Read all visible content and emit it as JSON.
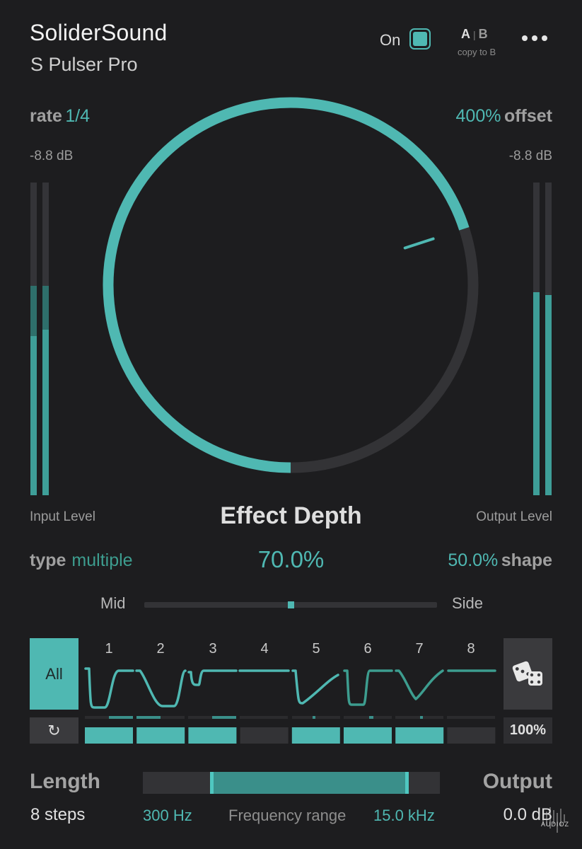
{
  "header": {
    "brand": "SoliderSound",
    "product": "S Pulser Pro",
    "on_label": "On",
    "ab_a": "A",
    "ab_sep": "|",
    "ab_b": "B",
    "copy_label": "copy to B"
  },
  "knob_row": {
    "rate_label": "rate",
    "rate_value": "1/4",
    "offset_value": "400%",
    "offset_label": "offset",
    "input_db": "-8.8 dB",
    "output_db": "-8.8 dB",
    "effect_depth_fraction": 0.7
  },
  "meters": {
    "input": [
      {
        "level": 0.51,
        "peak": 0.67
      },
      {
        "level": 0.53,
        "peak": 0.67
      }
    ],
    "output": [
      {
        "level": 0.65,
        "peak": 0.45
      },
      {
        "level": 0.64,
        "peak": 0.46
      }
    ]
  },
  "labels": {
    "input_level": "Input Level",
    "effect_depth": "Effect Depth",
    "output_level": "Output Level"
  },
  "params": {
    "type_label": "type",
    "type_value": "multiple",
    "depth_value": "70.0%",
    "shape_value": "50.0%",
    "shape_label": "shape",
    "mid_label": "Mid",
    "side_label": "Side",
    "mid_side_value": 0.5
  },
  "steps": {
    "all_label": "All",
    "numbers": [
      "1",
      "2",
      "3",
      "4",
      "5",
      "6",
      "7",
      "8"
    ],
    "active": [
      true,
      true,
      true,
      false,
      true,
      true,
      true,
      false
    ],
    "random_percent": "100%"
  },
  "footer": {
    "length_label": "Length",
    "length_value": "8 steps",
    "output_label": "Output",
    "output_value": "0.0 dB",
    "freq_low": "300 Hz",
    "freq_label": "Frequency range",
    "freq_high": "15.0 kHz",
    "freq_range_fraction": [
      0.23,
      0.89
    ]
  },
  "watermark": "AUDIOZ",
  "colors": {
    "background": "#1d1d1f",
    "accent": "#4fb8b2",
    "accent_dark": "#3a8f8a",
    "panel": "#3a3a3d"
  }
}
